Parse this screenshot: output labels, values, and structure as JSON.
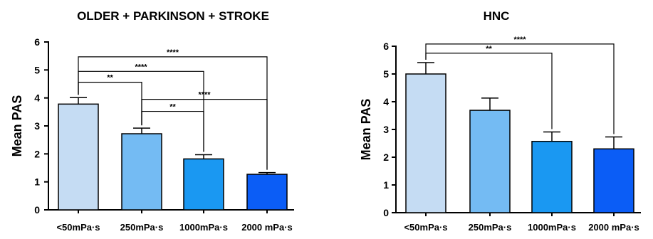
{
  "chart_data": [
    {
      "type": "bar",
      "title": "OLDER + PARKINSON + STROKE",
      "xlabel": "",
      "ylabel": "Mean PAS",
      "ylim": [
        0,
        6
      ],
      "yticks": [
        "0",
        "1",
        "2",
        "3",
        "4",
        "5",
        "6"
      ],
      "categories": [
        "<50mPa·s",
        "250mPa·s",
        "1000mPa·s",
        "2000 mPa·s"
      ],
      "values": [
        3.78,
        2.72,
        1.82,
        1.27
      ],
      "error_upper": [
        0.23,
        0.2,
        0.15,
        0.06
      ],
      "colors": [
        "#c5dcf3",
        "#74bbf3",
        "#1a98f2",
        "#0b5df6"
      ],
      "significance": [
        {
          "from": 0,
          "to": 3,
          "label": "****",
          "y": 5.47
        },
        {
          "from": 0,
          "to": 2,
          "label": "****",
          "y": 4.95
        },
        {
          "from": 0,
          "to": 1,
          "label": "**",
          "y": 4.56
        },
        {
          "from": 1,
          "to": 3,
          "label": "****",
          "y": 3.95
        },
        {
          "from": 1,
          "to": 2,
          "label": "**",
          "y": 3.52
        }
      ]
    },
    {
      "type": "bar",
      "title": "HNC",
      "xlabel": "",
      "ylabel": "Mean PAS",
      "ylim": [
        0,
        6
      ],
      "yticks": [
        "0",
        "1",
        "2",
        "3",
        "4",
        "5",
        "6"
      ],
      "categories": [
        "<50mPa·s",
        "250mPa·s",
        "1000mPa·s",
        "2000 mPa·s"
      ],
      "values": [
        5.0,
        3.69,
        2.57,
        2.3
      ],
      "error_upper": [
        0.41,
        0.44,
        0.34,
        0.43
      ],
      "colors": [
        "#c5dcf3",
        "#74bbf3",
        "#1a98f2",
        "#0b5df6"
      ],
      "significance": [
        {
          "from": 0,
          "to": 3,
          "label": "****",
          "y": 6.08
        },
        {
          "from": 0,
          "to": 2,
          "label": "**",
          "y": 5.75
        }
      ]
    }
  ]
}
